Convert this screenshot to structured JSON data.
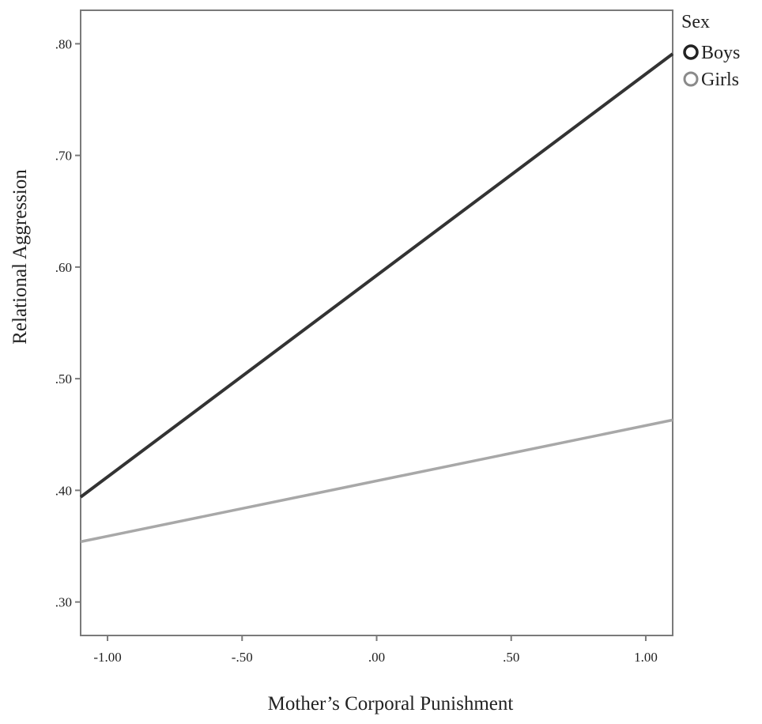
{
  "chart_data": {
    "type": "line",
    "title": "",
    "xlabel": "Mother’s Corporal Punishment",
    "ylabel": "Relational Aggression",
    "xlim": [
      -1.1,
      1.1
    ],
    "ylim": [
      0.27,
      0.83
    ],
    "x_ticks": [
      -1.0,
      -0.5,
      0.0,
      0.5,
      1.0
    ],
    "x_tick_labels": [
      "-1.00",
      "-.50",
      ".00",
      ".50",
      "1.00"
    ],
    "y_ticks": [
      0.3,
      0.4,
      0.5,
      0.6,
      0.7,
      0.8
    ],
    "y_tick_labels": [
      ".30",
      ".40",
      ".50",
      ".60",
      ".70",
      ".80"
    ],
    "grid": false,
    "legend": {
      "title": "Sex",
      "placement": "top-right outside"
    },
    "series": [
      {
        "name": "Boys",
        "color": "#333333",
        "x": [
          -1.1,
          1.1
        ],
        "y": [
          0.394,
          0.791
        ]
      },
      {
        "name": "Girls",
        "color": "#a8a8a8",
        "x": [
          -1.1,
          1.1
        ],
        "y": [
          0.354,
          0.463
        ]
      }
    ]
  }
}
